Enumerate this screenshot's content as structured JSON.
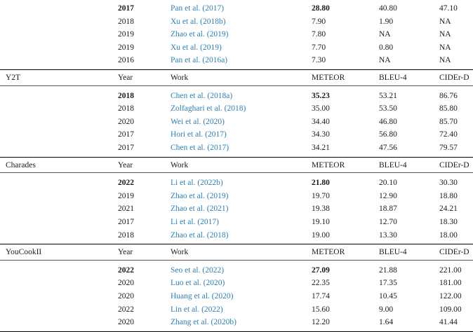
{
  "headers": {
    "year": "Year",
    "work": "Work",
    "meteor": "METEOR",
    "bleu": "BLEU-4",
    "cider": "CIDEr-D"
  },
  "sections": [
    {
      "dataset": "",
      "show_header": false,
      "rows": [
        {
          "year": "2017",
          "bold": true,
          "work_name": "Pan et al. (",
          "work_year": "2017",
          "meteor": "28.80",
          "bleu": "40.80",
          "cider": "47.10"
        },
        {
          "year": "2018",
          "bold": false,
          "work_name": "Xu et al. (",
          "work_year": "2018b",
          "meteor": "7.90",
          "bleu": "1.90",
          "cider": "NA"
        },
        {
          "year": "2019",
          "bold": false,
          "work_name": "Zhao et al. (",
          "work_year": "2019",
          "meteor": "7.80",
          "bleu": "NA",
          "cider": "NA"
        },
        {
          "year": "2019",
          "bold": false,
          "work_name": "Xu et al. (",
          "work_year": "2019",
          "meteor": "7.70",
          "bleu": "0.80",
          "cider": "NA"
        },
        {
          "year": "2016",
          "bold": false,
          "work_name": "Pan et al. (",
          "work_year": "2016a",
          "meteor": "7.30",
          "bleu": "NA",
          "cider": "NA"
        }
      ]
    },
    {
      "dataset": "Y2T",
      "show_header": true,
      "rows": [
        {
          "year": "2018",
          "bold": true,
          "work_name": "Chen et al. (",
          "work_year": "2018a",
          "meteor": "35.23",
          "bleu": "53.21",
          "cider": "86.76"
        },
        {
          "year": "2018",
          "bold": false,
          "work_name": "Zolfaghari et al. (",
          "work_year": "2018",
          "meteor": "35.00",
          "bleu": "53.50",
          "cider": "85.80"
        },
        {
          "year": "2020",
          "bold": false,
          "work_name": "Wei et al. (",
          "work_year": "2020",
          "meteor": "34.40",
          "bleu": "46.80",
          "cider": "85.70"
        },
        {
          "year": "2017",
          "bold": false,
          "work_name": "Hori et al. (",
          "work_year": "2017",
          "meteor": "34.30",
          "bleu": "56.80",
          "cider": "72.40"
        },
        {
          "year": "2017",
          "bold": false,
          "work_name": "Chen et al. (",
          "work_year": "2017",
          "meteor": "34.21",
          "bleu": "47.56",
          "cider": "79.57"
        }
      ]
    },
    {
      "dataset": "Charades",
      "show_header": true,
      "rows": [
        {
          "year": "2022",
          "bold": true,
          "work_name": "Li et al. (",
          "work_year": "2022b",
          "meteor": "21.80",
          "bleu": "20.10",
          "cider": "30.30"
        },
        {
          "year": "2019",
          "bold": false,
          "work_name": "Zhao et al. (",
          "work_year": "2019",
          "meteor": "19.70",
          "bleu": "12.90",
          "cider": "18.80"
        },
        {
          "year": "2021",
          "bold": false,
          "work_name": "Zhao et al. (",
          "work_year": "2021",
          "meteor": "19.38",
          "bleu": "18.87",
          "cider": "24.21"
        },
        {
          "year": "2017",
          "bold": false,
          "work_name": "Li et al. (",
          "work_year": "2017",
          "meteor": "19.10",
          "bleu": "12.70",
          "cider": "18.30"
        },
        {
          "year": "2018",
          "bold": false,
          "work_name": "Zhao et al. (",
          "work_year": "2018",
          "meteor": "19.00",
          "bleu": "13.30",
          "cider": "18.00"
        }
      ]
    },
    {
      "dataset": "YouCookII",
      "show_header": true,
      "rows": [
        {
          "year": "2022",
          "bold": true,
          "work_name": "Seo et al. (",
          "work_year": "2022",
          "meteor": "27.09",
          "bleu": "21.88",
          "cider": "221.00"
        },
        {
          "year": "2020",
          "bold": false,
          "work_name": "Luo et al. (",
          "work_year": "2020",
          "meteor": "22.35",
          "bleu": "17.35",
          "cider": "181.00"
        },
        {
          "year": "2020",
          "bold": false,
          "work_name": "Huang et al. (",
          "work_year": "2020",
          "meteor": "17.74",
          "bleu": "10.45",
          "cider": "122.00"
        },
        {
          "year": "2022",
          "bold": false,
          "work_name": "Lin et al. (",
          "work_year": "2022",
          "meteor": "15.60",
          "bleu": "9.00",
          "cider": "109.00"
        },
        {
          "year": "2020",
          "bold": false,
          "work_name": "Zhang et al. (",
          "work_year": "2020b",
          "meteor": "12.20",
          "bleu": "1.64",
          "cider": "41.44"
        }
      ]
    }
  ]
}
